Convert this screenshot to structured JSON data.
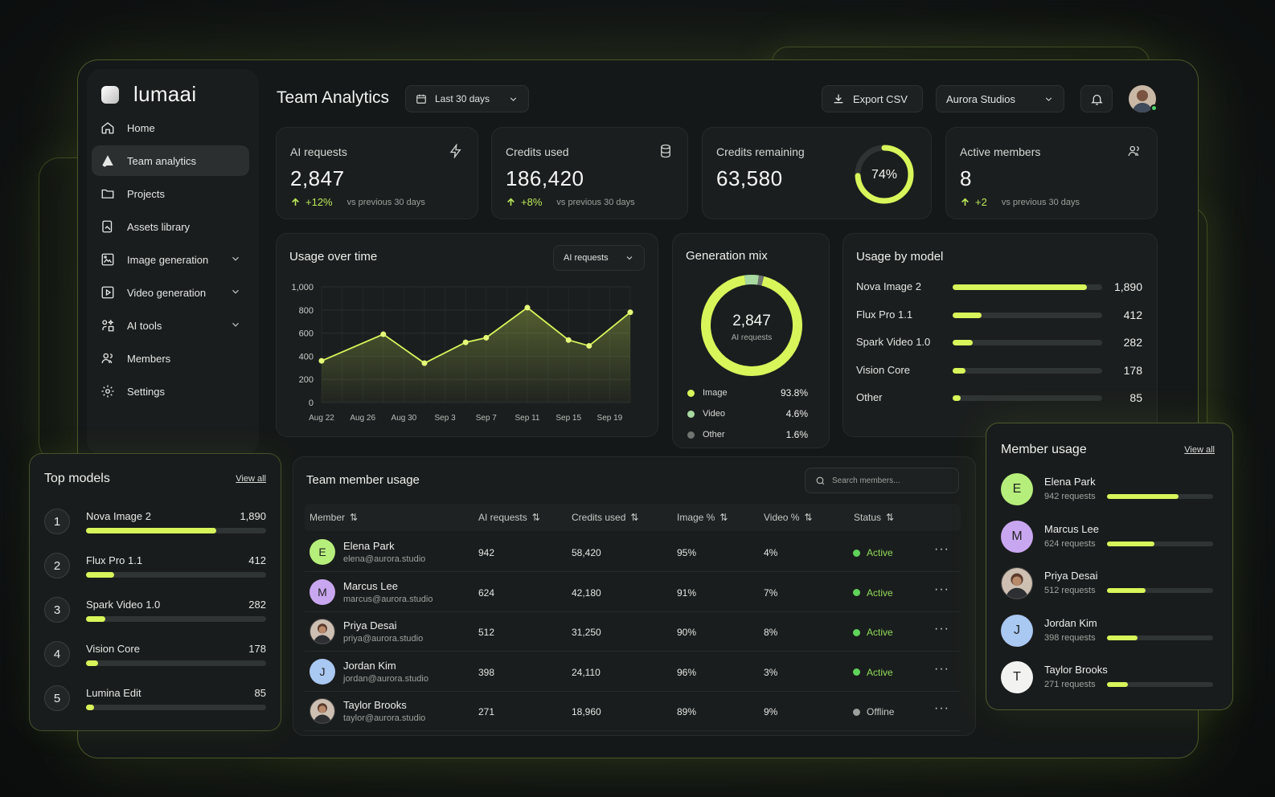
{
  "app": {
    "name": "lumaai"
  },
  "sidebar": {
    "items": [
      {
        "label": "Home",
        "icon": "home-icon"
      },
      {
        "label": "Team analytics",
        "icon": "analytics-icon",
        "active": true
      },
      {
        "label": "Projects",
        "icon": "folder-icon"
      },
      {
        "label": "Assets library",
        "icon": "assets-icon"
      },
      {
        "label": "Image generation",
        "icon": "image-icon",
        "chevron": true
      },
      {
        "label": "Video generation",
        "icon": "video-icon",
        "chevron": true
      },
      {
        "label": "AI tools",
        "icon": "tools-icon",
        "chevron": true
      },
      {
        "label": "Members",
        "icon": "members-icon"
      },
      {
        "label": "Settings",
        "icon": "gear-icon"
      }
    ]
  },
  "header": {
    "title": "Team Analytics",
    "date_range": "Last 30 days",
    "export_label": "Export CSV",
    "workspace": "Aurora Studios"
  },
  "stats": [
    {
      "label": "AI requests",
      "value": "2,847",
      "delta": "+12%",
      "vs": "vs previous 30 days"
    },
    {
      "label": "Credits used",
      "value": "186,420",
      "delta": "+8%",
      "vs": "vs previous 30 days"
    },
    {
      "label": "Credits remaining",
      "value": "63,580",
      "ring_percent": "74%",
      "ring_fraction": 0.74
    },
    {
      "label": "Active members",
      "value": "8",
      "delta": "+2",
      "vs": "vs previous 30 days"
    }
  ],
  "usage_over_time": {
    "title": "Usage over time",
    "metric": "AI requests"
  },
  "chart_data": {
    "type": "area",
    "title": "Usage over time",
    "x": [
      "Aug 22",
      "Aug 24",
      "Aug 26",
      "Aug 28",
      "Aug 30",
      "Sep 1",
      "Sep 3",
      "Sep 5",
      "Sep 7",
      "Sep 9",
      "Sep 11",
      "Sep 13",
      "Sep 15",
      "Sep 17",
      "Sep 19",
      "Sep 21"
    ],
    "tick_labels": [
      "Aug 22",
      "Aug 26",
      "Aug 30",
      "Sep 3",
      "Sep 7",
      "Sep 11",
      "Sep 15",
      "Sep 19"
    ],
    "yticks": [
      "1,000",
      "800",
      "600",
      "400",
      "200",
      "0"
    ],
    "series": [
      {
        "name": "AI requests",
        "points": [
          {
            "x": "Aug 22",
            "y": 360
          },
          {
            "x": "Aug 28",
            "y": 590
          },
          {
            "x": "Sep 1",
            "y": 340
          },
          {
            "x": "Sep 5",
            "y": 520
          },
          {
            "x": "Sep 7",
            "y": 560
          },
          {
            "x": "Sep 11",
            "y": 820
          },
          {
            "x": "Sep 15",
            "y": 540
          },
          {
            "x": "Sep 17",
            "y": 490
          },
          {
            "x": "Sep 21",
            "y": 780
          }
        ]
      }
    ],
    "ylim": [
      0,
      1000
    ],
    "grid": true,
    "color": "#d8f55a"
  },
  "generation_mix": {
    "title": "Generation mix",
    "center_value": "2,847",
    "center_label": "AI requests",
    "items": [
      {
        "label": "Image",
        "value": "93.8%",
        "fraction": 0.938,
        "color": "#d8f55a"
      },
      {
        "label": "Video",
        "value": "4.6%",
        "fraction": 0.046,
        "color": "#a8d9a0"
      },
      {
        "label": "Other",
        "value": "1.6%",
        "fraction": 0.016,
        "color": "#6f7571"
      }
    ]
  },
  "usage_by_model": {
    "title": "Usage by model",
    "max": 2100,
    "items": [
      {
        "label": "Nova Image 2",
        "value": "1,890",
        "n": 1890
      },
      {
        "label": "Flux Pro 1.1",
        "value": "412",
        "n": 412
      },
      {
        "label": "Spark Video 1.0",
        "value": "282",
        "n": 282
      },
      {
        "label": "Vision Core",
        "value": "178",
        "n": 178
      },
      {
        "label": "Other",
        "value": "85",
        "n": 85
      }
    ]
  },
  "top_models": {
    "title": "Top models",
    "view_all": "View all",
    "max": 1890,
    "items": [
      {
        "rank": "1",
        "label": "Nova Image 2",
        "value": "1,890",
        "n": 1890
      },
      {
        "rank": "2",
        "label": "Flux Pro 1.1",
        "value": "412",
        "n": 412
      },
      {
        "rank": "3",
        "label": "Spark Video 1.0",
        "value": "282",
        "n": 282
      },
      {
        "rank": "4",
        "label": "Vision Core",
        "value": "178",
        "n": 178
      },
      {
        "rank": "5",
        "label": "Lumina Edit",
        "value": "85",
        "n": 85
      }
    ]
  },
  "team_table": {
    "title": "Team member usage",
    "search_placeholder": "Search members...",
    "columns": [
      "Member",
      "AI requests",
      "Credits used",
      "Image %",
      "Video %",
      "Status"
    ],
    "rows": [
      {
        "initial": "E",
        "avatar_color": "#b6ee7c",
        "name": "Elena Park",
        "email": "elena@aurora.studio",
        "requests": "942",
        "credits": "58,420",
        "image": "95%",
        "video": "4%",
        "status": "Active"
      },
      {
        "initial": "M",
        "avatar_color": "#c9a7f0",
        "name": "Marcus Lee",
        "email": "marcus@aurora.studio",
        "requests": "624",
        "credits": "42,180",
        "image": "91%",
        "video": "7%",
        "status": "Active"
      },
      {
        "initial": "",
        "avatar_color": "#8a6a58",
        "photo": true,
        "name": "Priya Desai",
        "email": "priya@aurora.studio",
        "requests": "512",
        "credits": "31,250",
        "image": "90%",
        "video": "8%",
        "status": "Active"
      },
      {
        "initial": "J",
        "avatar_color": "#a9c8f2",
        "name": "Jordan Kim",
        "email": "jordan@aurora.studio",
        "requests": "398",
        "credits": "24,110",
        "image": "96%",
        "video": "3%",
        "status": "Active"
      },
      {
        "initial": "",
        "avatar_color": "#7d6a5e",
        "photo": true,
        "name": "Taylor Brooks",
        "email": "taylor@aurora.studio",
        "requests": "271",
        "credits": "18,960",
        "image": "89%",
        "video": "9%",
        "status": "Offline"
      }
    ]
  },
  "member_usage": {
    "title": "Member usage",
    "view_all": "View all",
    "max": 1400,
    "items": [
      {
        "initial": "E",
        "avatar_color": "#b6ee7c",
        "name": "Elena Park",
        "requests": "942 requests",
        "n": 942
      },
      {
        "initial": "M",
        "avatar_color": "#c9a7f0",
        "name": "Marcus Lee",
        "requests": "624 requests",
        "n": 624
      },
      {
        "initial": "",
        "avatar_color": "#8a6a58",
        "photo": true,
        "name": "Priya Desai",
        "requests": "512 requests",
        "n": 512
      },
      {
        "initial": "J",
        "avatar_color": "#a9c8f2",
        "name": "Jordan Kim",
        "requests": "398 requests",
        "n": 398
      },
      {
        "initial": "T",
        "avatar_color": "#f2f2f0",
        "name": "Taylor Brooks",
        "requests": "271 requests",
        "n": 271
      }
    ]
  }
}
